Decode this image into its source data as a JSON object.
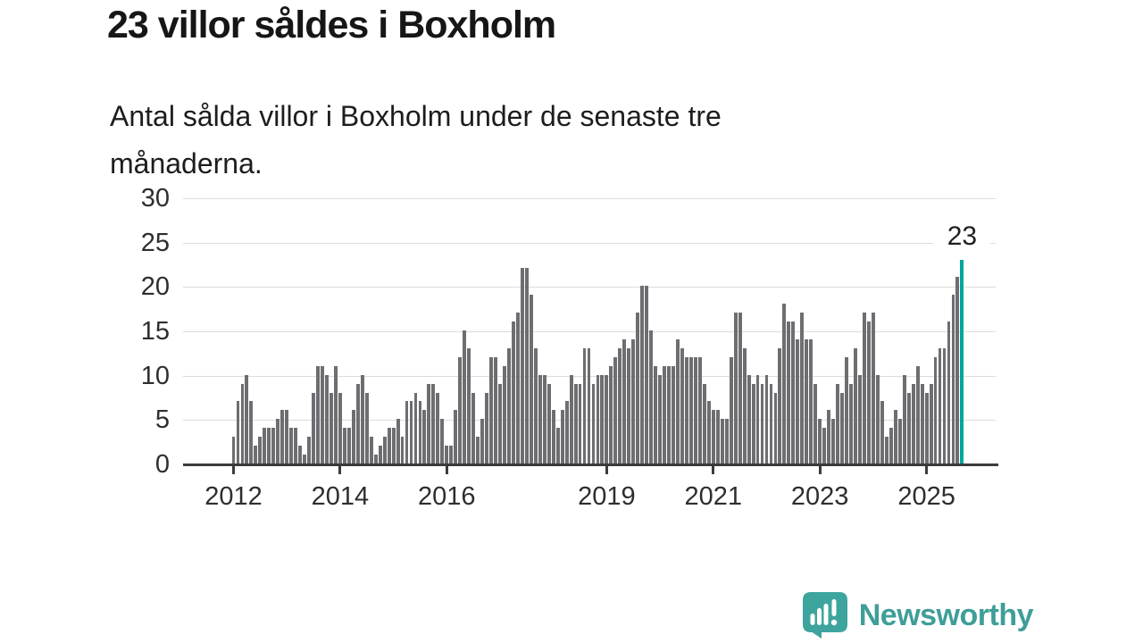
{
  "title": "23 villor såldes i Boxholm",
  "subtitle_lines": [
    "Antal sålda villor i Boxholm under de senaste tre",
    "månaderna."
  ],
  "annotation": {
    "label": "23"
  },
  "logo": {
    "text": "Newsworthy",
    "color": "#3f9e98",
    "icon": "speech-bubble-bar-chart-icon"
  },
  "colors": {
    "bar": "#6e6d71",
    "highlight": "#00a79b",
    "gridline": "#dcdcdc",
    "axis": "#3b3b3b",
    "text": "#161616"
  },
  "chart_data": {
    "type": "bar",
    "title": "Antal sålda villor i Boxholm under de senaste tre månaderna (rullande 3-månadersvärde per månad)",
    "x_start": "2012-01",
    "x_end": "2025-09",
    "x_frequency": "monthly",
    "ylabel": "",
    "xlabel": "",
    "ylim": [
      0,
      30
    ],
    "grid": true,
    "legend": "none",
    "y_ticks": [
      0,
      5,
      10,
      15,
      20,
      25,
      30
    ],
    "x_ticks": [
      {
        "label": "2012",
        "month": 0
      },
      {
        "label": "2014",
        "month": 24
      },
      {
        "label": "2016",
        "month": 48
      },
      {
        "label": "2019",
        "month": 84
      },
      {
        "label": "2021",
        "month": 108
      },
      {
        "label": "2023",
        "month": 132
      },
      {
        "label": "2025",
        "month": 156
      }
    ],
    "values": [
      3,
      7,
      9,
      10,
      7,
      2,
      3,
      4,
      4,
      4,
      5,
      6,
      6,
      4,
      4,
      2,
      1,
      3,
      8,
      11,
      11,
      10,
      8,
      11,
      8,
      4,
      4,
      6,
      9,
      10,
      8,
      3,
      1,
      2,
      3,
      4,
      4,
      5,
      3,
      7,
      7,
      8,
      7,
      6,
      9,
      9,
      8,
      5,
      2,
      2,
      6,
      12,
      15,
      13,
      8,
      3,
      5,
      8,
      12,
      12,
      9,
      11,
      13,
      16,
      17,
      22,
      22,
      19,
      13,
      10,
      10,
      9,
      6,
      4,
      6,
      7,
      10,
      9,
      9,
      13,
      13,
      9,
      10,
      10,
      10,
      11,
      12,
      13,
      14,
      13,
      14,
      17,
      20,
      20,
      15,
      11,
      10,
      11,
      11,
      11,
      14,
      13,
      12,
      12,
      12,
      12,
      9,
      7,
      6,
      6,
      5,
      5,
      12,
      17,
      17,
      13,
      10,
      9,
      10,
      9,
      10,
      9,
      8,
      13,
      18,
      16,
      16,
      14,
      17,
      14,
      14,
      9,
      5,
      4,
      6,
      5,
      9,
      8,
      12,
      9,
      13,
      10,
      17,
      16,
      17,
      10,
      7,
      3,
      4,
      6,
      5,
      10,
      8,
      9,
      11,
      9,
      8,
      9,
      12,
      13,
      13,
      16,
      19,
      21,
      23
    ],
    "highlight_last_bar": true,
    "annotation_value": 23
  }
}
